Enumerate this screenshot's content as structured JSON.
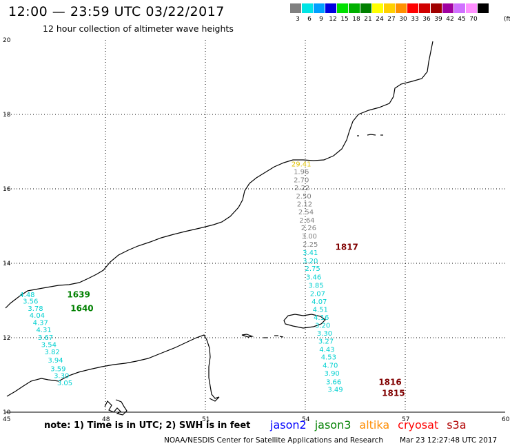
{
  "header": {
    "title": "12:00 — 23:59 UTC 03/22/2017",
    "subtitle": "12 hour collection of altimeter wave heights"
  },
  "legend": {
    "unit": "(ft)",
    "bins": [
      {
        "label": "3",
        "color": "#808080"
      },
      {
        "label": "6",
        "color": "#00e5e5"
      },
      {
        "label": "9",
        "color": "#00a0ff"
      },
      {
        "label": "12",
        "color": "#0000e0"
      },
      {
        "label": "15",
        "color": "#00e000"
      },
      {
        "label": "18",
        "color": "#00b000"
      },
      {
        "label": "21",
        "color": "#008000"
      },
      {
        "label": "24",
        "color": "#ffff00"
      },
      {
        "label": "27",
        "color": "#ffd000"
      },
      {
        "label": "30",
        "color": "#ff9000"
      },
      {
        "label": "33",
        "color": "#ff0000"
      },
      {
        "label": "36",
        "color": "#d00000"
      },
      {
        "label": "39",
        "color": "#a00000"
      },
      {
        "label": "42",
        "color": "#a000a0"
      },
      {
        "label": "45",
        "color": "#d070ff"
      },
      {
        "label": "70",
        "color": "#ff90ff"
      },
      {
        "label": "",
        "color": "#000000"
      }
    ]
  },
  "map": {
    "lon_ticks": [
      "45",
      "48",
      "51",
      "54",
      "57",
      "60"
    ],
    "lat_ticks": [
      "20",
      "18",
      "16",
      "14",
      "12",
      "10"
    ],
    "tracks": [
      {
        "name": "west-track",
        "color": "#00d0d0",
        "points": [
          {
            "lon": 45.65,
            "lat": 13.15,
            "v": "4.48"
          },
          {
            "lon": 45.75,
            "lat": 12.97,
            "v": "3.56"
          },
          {
            "lon": 45.9,
            "lat": 12.78,
            "v": "3.78"
          },
          {
            "lon": 45.95,
            "lat": 12.59,
            "v": "4.04"
          },
          {
            "lon": 46.05,
            "lat": 12.4,
            "v": "4.37"
          },
          {
            "lon": 46.15,
            "lat": 12.2,
            "v": "4.31"
          },
          {
            "lon": 46.2,
            "lat": 12.0,
            "v": "3.67"
          },
          {
            "lon": 46.3,
            "lat": 11.81,
            "v": "3.54"
          },
          {
            "lon": 46.4,
            "lat": 11.61,
            "v": "3.82"
          },
          {
            "lon": 46.5,
            "lat": 11.39,
            "v": "3.94"
          },
          {
            "lon": 46.58,
            "lat": 11.16,
            "v": "3.59"
          },
          {
            "lon": 46.68,
            "lat": 10.97,
            "v": "3.30"
          },
          {
            "lon": 46.78,
            "lat": 10.78,
            "v": "3.05"
          }
        ]
      },
      {
        "name": "east-track-upper",
        "color": "#808080",
        "points": [
          {
            "lon": 53.88,
            "lat": 16.45,
            "v": "1.96"
          },
          {
            "lon": 53.88,
            "lat": 16.23,
            "v": "2.70"
          },
          {
            "lon": 53.9,
            "lat": 16.02,
            "v": "2.22"
          },
          {
            "lon": 53.95,
            "lat": 15.8,
            "v": "2.50"
          },
          {
            "lon": 53.98,
            "lat": 15.58,
            "v": "2.12"
          },
          {
            "lon": 54.02,
            "lat": 15.37,
            "v": "2.54"
          },
          {
            "lon": 54.05,
            "lat": 15.15,
            "v": "2.64"
          },
          {
            "lon": 54.1,
            "lat": 14.94,
            "v": "2.26"
          },
          {
            "lon": 54.12,
            "lat": 14.72,
            "v": "3.00"
          },
          {
            "lon": 54.15,
            "lat": 14.5,
            "v": "2.25"
          }
        ]
      },
      {
        "name": "east-track-lower",
        "color": "#00d0d0",
        "points": [
          {
            "lon": 54.15,
            "lat": 14.28,
            "v": "3.41"
          },
          {
            "lon": 54.15,
            "lat": 14.06,
            "v": "3.20"
          },
          {
            "lon": 54.22,
            "lat": 13.85,
            "v": "2.75"
          },
          {
            "lon": 54.25,
            "lat": 13.62,
            "v": "3.46"
          },
          {
            "lon": 54.32,
            "lat": 13.4,
            "v": "3.85"
          },
          {
            "lon": 54.37,
            "lat": 13.18,
            "v": "2.07"
          },
          {
            "lon": 54.42,
            "lat": 12.96,
            "v": "4.07"
          },
          {
            "lon": 54.45,
            "lat": 12.75,
            "v": "4.51"
          },
          {
            "lon": 54.48,
            "lat": 12.54,
            "v": "4.16"
          },
          {
            "lon": 54.52,
            "lat": 12.32,
            "v": "3.20"
          },
          {
            "lon": 54.58,
            "lat": 12.11,
            "v": "3.30"
          },
          {
            "lon": 54.62,
            "lat": 11.9,
            "v": "3.27"
          },
          {
            "lon": 54.65,
            "lat": 11.68,
            "v": "4.43"
          },
          {
            "lon": 54.7,
            "lat": 11.47,
            "v": "4.53"
          },
          {
            "lon": 54.75,
            "lat": 11.25,
            "v": "4.70"
          },
          {
            "lon": 54.8,
            "lat": 11.04,
            "v": "3.90"
          },
          {
            "lon": 54.85,
            "lat": 10.81,
            "v": "3.66"
          },
          {
            "lon": 54.9,
            "lat": 10.6,
            "v": "3.49"
          }
        ]
      },
      {
        "name": "yellow-point",
        "color": "#e0c000",
        "points": [
          {
            "lon": 53.88,
            "lat": 16.66,
            "v": "29.41"
          }
        ]
      }
    ],
    "time_labels": [
      {
        "text": "1639",
        "lon": 46.85,
        "lat": 13.15,
        "color": "#008000"
      },
      {
        "text": "1640",
        "lon": 46.95,
        "lat": 12.78,
        "color": "#008000"
      },
      {
        "text": "1817",
        "lon": 54.9,
        "lat": 14.43,
        "color": "#800000"
      },
      {
        "text": "1816",
        "lon": 56.2,
        "lat": 10.8,
        "color": "#800000"
      },
      {
        "text": "1815",
        "lon": 56.3,
        "lat": 10.5,
        "color": "#800000"
      }
    ]
  },
  "footer": {
    "note": "note: 1) Time is in UTC; 2) SWH is in feet",
    "satellites": [
      {
        "name": "jason2",
        "color": "#0000ff"
      },
      {
        "name": "jason3",
        "color": "#008000"
      },
      {
        "name": "altika",
        "color": "#ff8c00"
      },
      {
        "name": "cryosat",
        "color": "#ff0000"
      },
      {
        "name": "s3a",
        "color": "#b00000"
      }
    ],
    "credit": "NOAA/NESDIS Center for Satellite Applications and Research",
    "timestamp": "Mar 23 12:27:48 UTC 2017"
  }
}
